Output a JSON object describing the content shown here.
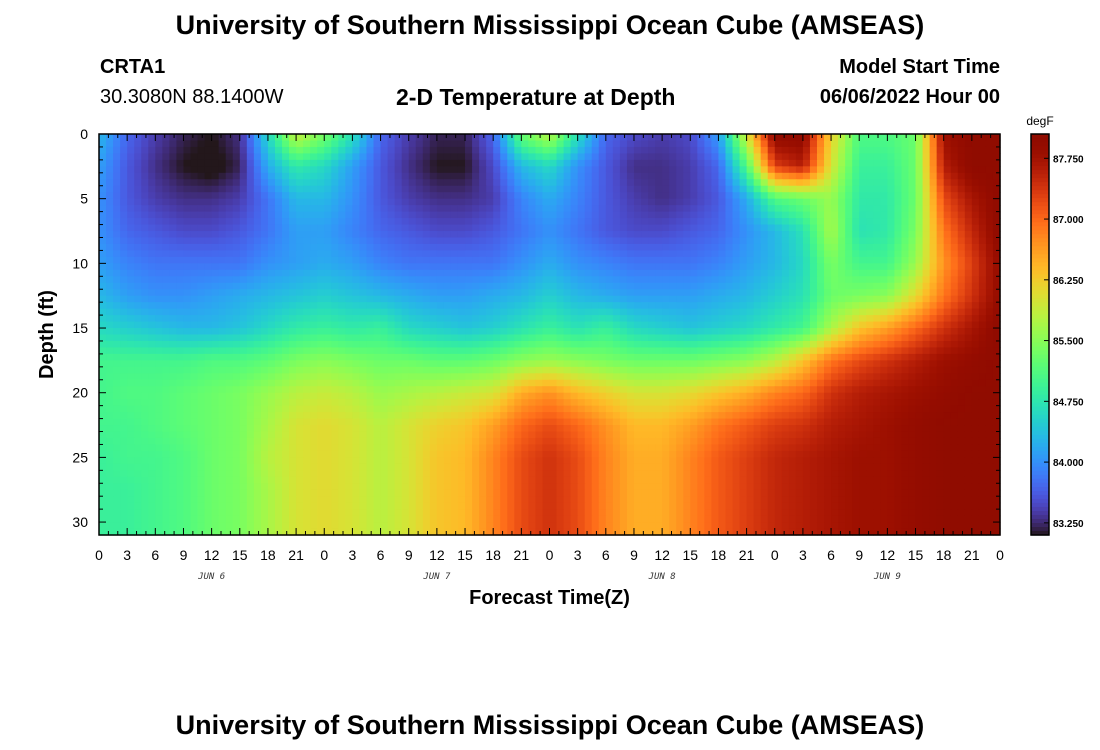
{
  "header": {
    "title": "University of Southern Mississippi Ocean Cube (AMSEAS)",
    "station": "CRTA1",
    "coords": "30.3080N  88.1400W",
    "subtitle": "2-D Temperature at Depth",
    "model_start_label": "Model Start Time",
    "model_start_value": "06/06/2022 Hour 00"
  },
  "footer": {
    "title": "University of Southern Mississippi Ocean Cube (AMSEAS)"
  },
  "chart_data": {
    "type": "heatmap",
    "xlabel": "Forecast Time(Z)",
    "ylabel": "Depth (ft)",
    "x_tick_labels": [
      "0",
      "3",
      "6",
      "9",
      "12",
      "15",
      "18",
      "21",
      "0",
      "3",
      "6",
      "9",
      "12",
      "15",
      "18",
      "21",
      "0",
      "3",
      "6",
      "9",
      "12",
      "15",
      "18",
      "21",
      "0",
      "3",
      "6",
      "9",
      "12",
      "15",
      "18",
      "21",
      "0"
    ],
    "x_range_hours": [
      0,
      96
    ],
    "day_labels": [
      {
        "label": "JUN 6",
        "hour": 12
      },
      {
        "label": "JUN 7",
        "hour": 36
      },
      {
        "label": "JUN 8",
        "hour": 60
      },
      {
        "label": "JUN 9",
        "hour": 84
      }
    ],
    "y_ticks": [
      0,
      5,
      10,
      15,
      20,
      25,
      30
    ],
    "y_tick_labels": [
      "0",
      "5",
      "10",
      "15",
      "20",
      "25",
      "30"
    ],
    "y_range_ft": [
      0,
      31
    ],
    "y_reversed": true,
    "colorbar": {
      "unit": "degF",
      "tick_labels": [
        "87.750",
        "87.000",
        "86.250",
        "85.500",
        "84.750",
        "84.000",
        "83.250"
      ],
      "tick_values": [
        87.75,
        87.0,
        86.25,
        85.5,
        84.75,
        84.0,
        83.25
      ],
      "range": [
        83.1,
        88.05
      ],
      "colormap": "turbo"
    },
    "value_unit": "degF",
    "grid_hours": [
      0,
      3,
      6,
      9,
      12,
      15,
      18,
      21,
      24,
      27,
      30,
      33,
      36,
      39,
      42,
      45,
      48,
      51,
      54,
      57,
      60,
      63,
      66,
      69,
      72,
      75,
      78,
      81,
      84,
      87,
      90,
      93,
      96
    ],
    "grid_depths_ft": [
      0,
      2.5,
      5,
      7.5,
      10,
      12.5,
      15,
      17.5,
      20,
      22.5,
      25,
      27.5,
      31
    ],
    "values": [
      [
        84.3,
        83.7,
        83.4,
        83.2,
        83.1,
        83.3,
        84.6,
        85.9,
        85.4,
        84.7,
        83.7,
        83.4,
        83.2,
        83.2,
        83.7,
        85.3,
        85.8,
        84.7,
        83.7,
        83.5,
        83.4,
        83.5,
        84.1,
        86.0,
        88.0,
        88.0,
        86.2,
        85.1,
        85.1,
        85.3,
        87.8,
        88.0,
        88.0
      ],
      [
        84.1,
        83.6,
        83.3,
        83.1,
        83.0,
        83.2,
        84.2,
        84.8,
        84.6,
        84.1,
        83.6,
        83.3,
        83.1,
        83.1,
        83.5,
        84.3,
        84.6,
        84.0,
        83.6,
        83.3,
        83.3,
        83.4,
        83.7,
        85.1,
        87.3,
        87.6,
        86.0,
        84.9,
        84.9,
        85.3,
        87.6,
        88.0,
        88.0
      ],
      [
        84.0,
        83.6,
        83.4,
        83.3,
        83.3,
        83.4,
        83.8,
        84.3,
        84.3,
        84.0,
        83.6,
        83.4,
        83.3,
        83.3,
        83.4,
        83.9,
        84.2,
        83.9,
        83.6,
        83.4,
        83.3,
        83.4,
        83.6,
        84.2,
        85.1,
        85.3,
        85.6,
        84.8,
        84.8,
        85.3,
        87.2,
        87.7,
        88.0
      ],
      [
        84.0,
        83.7,
        83.6,
        83.5,
        83.5,
        83.6,
        83.8,
        84.1,
        84.1,
        83.9,
        83.7,
        83.6,
        83.5,
        83.5,
        83.6,
        83.8,
        84.0,
        83.8,
        83.6,
        83.5,
        83.5,
        83.6,
        83.7,
        84.0,
        84.3,
        84.7,
        85.7,
        84.7,
        84.8,
        85.4,
        86.9,
        87.5,
        88.0
      ],
      [
        84.1,
        83.9,
        83.8,
        83.8,
        83.8,
        83.8,
        84.0,
        84.1,
        84.2,
        84.1,
        83.9,
        83.8,
        83.8,
        83.8,
        83.8,
        84.0,
        84.2,
        84.0,
        83.9,
        83.8,
        83.8,
        83.8,
        83.9,
        84.1,
        84.3,
        84.6,
        85.4,
        85.0,
        85.0,
        85.6,
        86.7,
        87.3,
        87.9
      ],
      [
        84.3,
        84.1,
        84.0,
        84.0,
        84.1,
        84.2,
        84.3,
        84.4,
        84.5,
        84.4,
        84.3,
        84.2,
        84.1,
        84.1,
        84.2,
        84.3,
        84.5,
        84.3,
        84.2,
        84.1,
        84.1,
        84.1,
        84.2,
        84.3,
        84.5,
        84.7,
        85.3,
        85.4,
        85.5,
        86.1,
        86.9,
        87.4,
        87.9
      ],
      [
        84.6,
        84.5,
        84.4,
        84.3,
        84.3,
        84.4,
        84.6,
        84.8,
        84.9,
        84.8,
        84.9,
        84.6,
        84.5,
        84.4,
        84.5,
        84.7,
        84.9,
        84.7,
        84.9,
        84.6,
        84.5,
        84.4,
        84.5,
        84.6,
        84.8,
        85.0,
        85.7,
        86.3,
        86.6,
        87.0,
        87.4,
        87.7,
        88.0
      ],
      [
        85.0,
        85.0,
        85.0,
        85.0,
        85.1,
        85.1,
        85.2,
        85.4,
        85.5,
        85.4,
        85.3,
        85.3,
        85.2,
        85.2,
        85.3,
        85.5,
        85.6,
        85.5,
        85.4,
        85.3,
        85.3,
        85.3,
        85.4,
        85.5,
        85.8,
        86.3,
        86.9,
        87.2,
        87.4,
        87.6,
        87.8,
        87.9,
        88.0
      ],
      [
        85.0,
        85.1,
        85.1,
        85.2,
        85.3,
        85.4,
        85.6,
        85.8,
        85.9,
        85.8,
        85.6,
        85.7,
        85.8,
        85.9,
        86.0,
        86.5,
        86.7,
        86.4,
        86.2,
        86.0,
        86.0,
        86.1,
        86.3,
        86.5,
        86.8,
        87.0,
        87.4,
        87.6,
        87.7,
        87.8,
        87.9,
        88.0,
        88.0
      ],
      [
        85.0,
        85.0,
        85.1,
        85.2,
        85.3,
        85.4,
        85.7,
        86.0,
        86.1,
        86.0,
        85.8,
        86.0,
        86.2,
        86.3,
        86.6,
        87.0,
        87.2,
        87.0,
        86.7,
        86.4,
        86.4,
        86.6,
        86.9,
        87.1,
        87.3,
        87.4,
        87.6,
        87.7,
        87.8,
        87.9,
        88.0,
        88.0,
        88.0
      ],
      [
        84.9,
        85.0,
        85.0,
        85.1,
        85.3,
        85.4,
        85.8,
        86.0,
        86.1,
        86.0,
        85.8,
        86.0,
        86.3,
        86.4,
        86.8,
        87.2,
        87.4,
        87.2,
        86.8,
        86.5,
        86.5,
        86.8,
        87.1,
        87.3,
        87.5,
        87.6,
        87.7,
        87.8,
        87.8,
        87.9,
        88.0,
        88.0,
        88.0
      ],
      [
        84.9,
        84.9,
        85.0,
        85.1,
        85.3,
        85.4,
        85.7,
        86.0,
        86.1,
        86.0,
        85.8,
        86.0,
        86.3,
        86.4,
        86.8,
        87.2,
        87.4,
        87.2,
        86.8,
        86.5,
        86.5,
        86.8,
        87.1,
        87.3,
        87.5,
        87.6,
        87.7,
        87.8,
        87.8,
        87.9,
        88.0,
        88.0,
        88.0
      ],
      [
        84.9,
        84.9,
        85.0,
        85.1,
        85.3,
        85.4,
        85.7,
        86.0,
        86.1,
        86.0,
        85.8,
        86.0,
        86.3,
        86.4,
        86.8,
        87.2,
        87.4,
        87.2,
        86.8,
        86.5,
        86.5,
        86.8,
        87.1,
        87.3,
        87.5,
        87.6,
        87.7,
        87.8,
        87.8,
        87.9,
        88.0,
        88.0,
        88.0
      ]
    ]
  }
}
